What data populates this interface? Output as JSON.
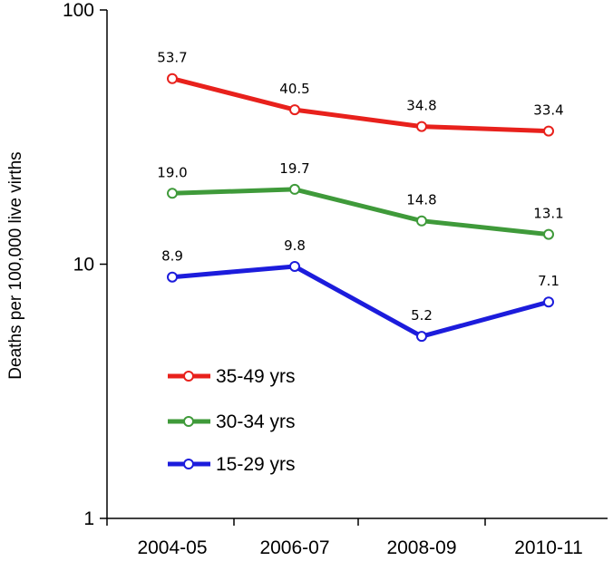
{
  "chart_data": {
    "type": "line",
    "title": "",
    "xlabel": "",
    "ylabel": "Deaths per 100,000 live virths",
    "y_scale": "log",
    "ylim": [
      1,
      100
    ],
    "y_ticks": [
      "1",
      "10",
      "100"
    ],
    "categories": [
      "2004-05",
      "2006-07",
      "2008-09",
      "2010-11"
    ],
    "grid": false,
    "legend_position": "lower-left",
    "series": [
      {
        "name": "35-49 yrs",
        "color": "#e8211c",
        "values": [
          53.7,
          40.5,
          34.8,
          33.4
        ],
        "labels": [
          "53.7",
          "40.5",
          "34.8",
          "33.4"
        ]
      },
      {
        "name": "30-34 yrs",
        "color": "#3f9a3a",
        "values": [
          19.0,
          19.7,
          14.8,
          13.1
        ],
        "labels": [
          "19.0",
          "19.7",
          "14.8",
          "13.1"
        ]
      },
      {
        "name": "15-29 yrs",
        "color": "#1c1cdc",
        "values": [
          8.9,
          9.8,
          5.2,
          7.1
        ],
        "labels": [
          "8.9",
          "9.8",
          "5.2",
          "7.1"
        ]
      }
    ]
  }
}
